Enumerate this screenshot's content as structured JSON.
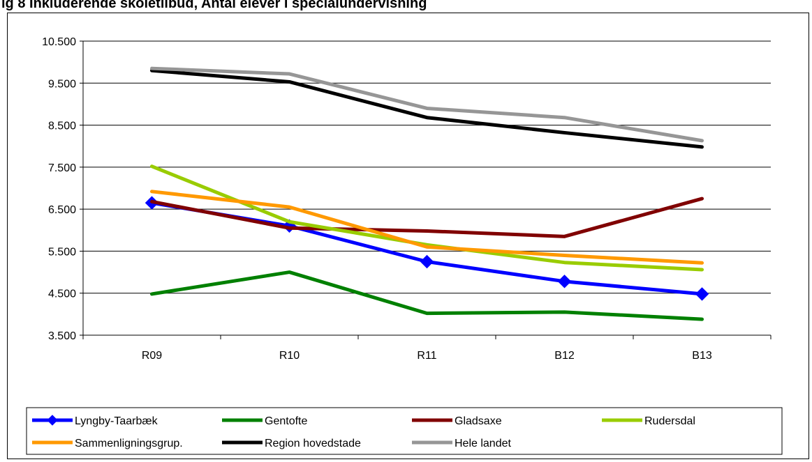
{
  "title": "ig 8 Inkluderende skoletilbud, Antal elever i specialundervisning",
  "chart_data": {
    "type": "line",
    "categories": [
      "R09",
      "R10",
      "R11",
      "B12",
      "B13"
    ],
    "ylim": [
      3500,
      10500
    ],
    "yticks": [
      "3.500",
      "4.500",
      "5.500",
      "6.500",
      "7.500",
      "8.500",
      "9.500",
      "10.500"
    ],
    "ytick_values": [
      3500,
      4500,
      5500,
      6500,
      7500,
      8500,
      9500,
      10500
    ],
    "grid": true,
    "legend_placement": "bottom",
    "series": [
      {
        "name": "Lyngby-Taarbæk",
        "color": "#0000ff",
        "marker": "diamond",
        "values": [
          6650,
          6100,
          5250,
          4780,
          4480
        ]
      },
      {
        "name": "Gentofte",
        "color": "#008000",
        "marker": "none",
        "values": [
          4480,
          5000,
          4020,
          4050,
          3880
        ]
      },
      {
        "name": "Gladsaxe",
        "color": "#800000",
        "marker": "none",
        "values": [
          6680,
          6050,
          5980,
          5850,
          6750
        ]
      },
      {
        "name": "Rudersdal",
        "color": "#99cc00",
        "marker": "none",
        "values": [
          7520,
          6200,
          5650,
          5230,
          5060
        ]
      },
      {
        "name": "Sammenligningsgrup.",
        "color": "#ff9900",
        "marker": "none",
        "values": [
          6920,
          6550,
          5600,
          5400,
          5220
        ]
      },
      {
        "name": "Region hovedstade",
        "color": "#000000",
        "marker": "none",
        "values": [
          9800,
          9530,
          8680,
          8320,
          7980
        ]
      },
      {
        "name": "Hele landet",
        "color": "#969696",
        "marker": "none",
        "values": [
          9850,
          9720,
          8900,
          8680,
          8130
        ]
      }
    ]
  }
}
